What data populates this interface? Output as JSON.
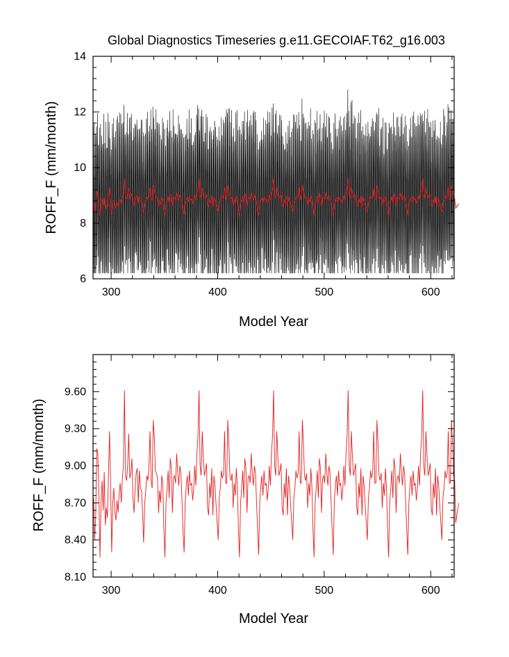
{
  "title": "Global Diagnostics Timeseries g.e11.GECOIAF.T62_g16.003",
  "colors": {
    "monthly": "#000000",
    "annual": "#e41b1b",
    "background": "#ffffff"
  },
  "chart_data": [
    {
      "type": "line",
      "title": "Global Diagnostics Timeseries g.e11.GECOIAF.T62_g16.003",
      "xlabel": "Model Year",
      "ylabel": "ROFF_F (mm/month)",
      "xlim": [
        283,
        622
      ],
      "ylim": [
        6,
        14
      ],
      "xticks": [
        "300",
        "400",
        "500",
        "600"
      ],
      "yticks": [
        "6",
        "8",
        "10",
        "12",
        "14"
      ],
      "grid": false,
      "legend": "none",
      "series": [
        {
          "kind": "monthly",
          "color": "#000000",
          "x_start": 283,
          "x_end": 622,
          "seasonal_range": [
            6.4,
            12.8
          ],
          "description_values": {
            "min": 6.2,
            "max": 13.2,
            "mean": 8.8
          }
        },
        {
          "kind": "annual",
          "color": "#e41b1b",
          "x_start": 283,
          "values_ref": "annual_roff"
        }
      ]
    },
    {
      "type": "line",
      "title": "",
      "xlabel": "Model Year",
      "ylabel": "ROFF_F (mm/month)",
      "xlim": [
        283,
        622
      ],
      "ylim": [
        8.1,
        9.9
      ],
      "xticks": [
        "300",
        "400",
        "500",
        "600"
      ],
      "yticks": [
        "8.10",
        "8.40",
        "8.70",
        "9.00",
        "9.30",
        "9.60"
      ],
      "grid": false,
      "legend": "none",
      "series": [
        {
          "kind": "annual",
          "color": "#e41b1b",
          "x_start": 283,
          "values_ref": "annual_roff"
        }
      ]
    }
  ],
  "annual_roff": [
    8.74,
    8.4,
    8.6,
    9.14,
    9.1,
    8.75,
    8.26,
    8.7,
    8.88,
    8.64,
    8.95,
    8.52,
    8.66,
    8.58,
    8.94,
    9.28,
    8.86,
    8.3,
    8.7,
    8.82,
    8.62,
    8.56,
    8.72,
    8.62,
    8.78,
    8.86,
    8.7,
    8.9,
    9.0,
    9.61,
    8.92,
    8.88,
    9.0,
    9.26,
    8.9,
    8.94,
    9.06,
    8.74,
    8.62,
    8.82,
    8.94,
    8.98,
    8.7,
    8.96,
    8.82,
    8.8,
    8.62,
    8.38,
    8.7,
    8.8,
    8.92,
    8.88,
    9.0,
    9.28,
    8.88,
    8.82,
    9.37,
    9.24,
    8.96,
    8.94,
    8.9,
    8.62,
    8.8,
    8.7,
    8.92,
    8.86,
    8.48,
    8.26,
    8.7,
    8.82,
    8.96,
    8.74,
    9.06,
    8.98,
    8.62,
    8.9,
    8.92,
    8.86,
    9.1,
    8.94,
    8.84,
    9.0,
    8.94,
    8.72,
    8.46,
    8.3,
    8.7,
    8.84,
    8.92,
    8.76,
    8.96,
    8.84,
    8.86,
    8.72,
    8.82,
    9.0,
    8.84,
    9.1,
    9.24,
    9.61,
    9.0,
    8.92,
    9.28,
    9.08,
    8.92,
    8.96,
    9.02,
    8.66,
    8.6,
    8.86,
    8.74,
    8.98,
    8.6,
    8.92,
    8.84,
    8.68,
    8.54,
    8.4,
    8.74,
    8.82,
    8.96,
    8.9,
    8.94,
    9.28,
    8.86,
    8.86,
    9.37,
    9.18,
    8.92,
    8.88,
    8.94,
    8.66,
    8.86,
    8.76,
    8.98,
    8.82,
    8.48,
    8.26,
    8.7,
    8.82,
    8.96,
    8.74,
    9.06,
    8.98,
    8.62,
    8.9,
    8.92,
    8.86,
    9.1,
    8.94,
    8.84,
    9.0,
    8.94,
    8.7,
    8.48,
    8.28,
    8.7,
    8.84,
    8.92,
    8.76,
    8.96,
    8.84,
    8.86,
    8.72,
    8.82,
    9.0,
    8.84,
    9.1,
    9.24,
    9.61,
    9.0,
    8.92,
    9.28,
    9.08,
    8.92,
    8.96,
    9.02,
    8.66,
    8.6,
    8.86,
    8.74,
    8.98,
    8.6,
    8.92,
    8.84,
    8.68,
    8.54,
    8.4,
    8.74,
    8.82,
    8.96,
    8.9,
    8.94,
    9.28,
    8.86,
    8.86,
    9.37,
    9.18,
    8.92,
    8.88,
    8.94,
    8.66,
    8.86,
    8.76,
    8.98,
    8.82,
    8.48,
    8.26,
    8.7,
    8.82,
    8.96,
    8.74,
    9.06,
    8.98,
    8.62,
    8.9,
    8.92,
    8.86,
    9.1,
    8.94,
    8.84,
    9.0,
    8.94,
    8.7,
    8.48,
    8.28,
    8.7,
    8.84,
    8.92,
    8.76,
    8.96,
    8.84,
    8.86,
    8.72,
    8.82,
    9.0,
    8.84,
    9.1,
    9.24,
    9.61,
    9.0,
    8.92,
    9.28,
    9.08,
    8.92,
    8.96,
    9.02,
    8.66,
    8.6,
    8.86,
    8.74,
    8.98,
    8.6,
    8.92,
    8.84,
    8.68,
    8.54,
    8.4,
    8.74,
    8.82,
    8.96,
    8.9,
    8.94,
    9.28,
    8.86,
    8.86,
    9.37,
    9.18,
    8.92,
    8.88,
    8.94,
    8.66,
    8.86,
    8.76,
    8.98,
    8.82,
    8.48,
    8.26,
    8.7,
    8.82,
    8.96,
    8.74,
    9.06,
    8.98,
    8.62,
    8.9,
    8.92,
    8.86,
    9.1,
    8.94,
    8.84,
    9.0,
    8.94,
    8.7,
    8.48,
    8.28,
    8.7,
    8.84,
    8.92,
    8.76,
    8.96,
    8.84,
    8.86,
    8.72,
    8.82,
    9.0,
    8.84,
    9.1,
    9.24,
    9.61,
    9.0,
    8.92,
    9.28,
    9.08,
    8.92,
    8.96,
    9.02,
    8.66,
    8.6,
    8.86,
    8.74,
    8.98,
    8.6,
    8.92,
    8.84,
    8.68,
    8.54,
    8.4,
    8.74,
    8.82,
    8.96,
    8.9,
    8.94,
    9.28,
    8.86,
    8.86,
    9.37,
    9.18,
    8.92,
    8.88,
    8.54,
    8.6,
    8.66,
    8.7
  ]
}
